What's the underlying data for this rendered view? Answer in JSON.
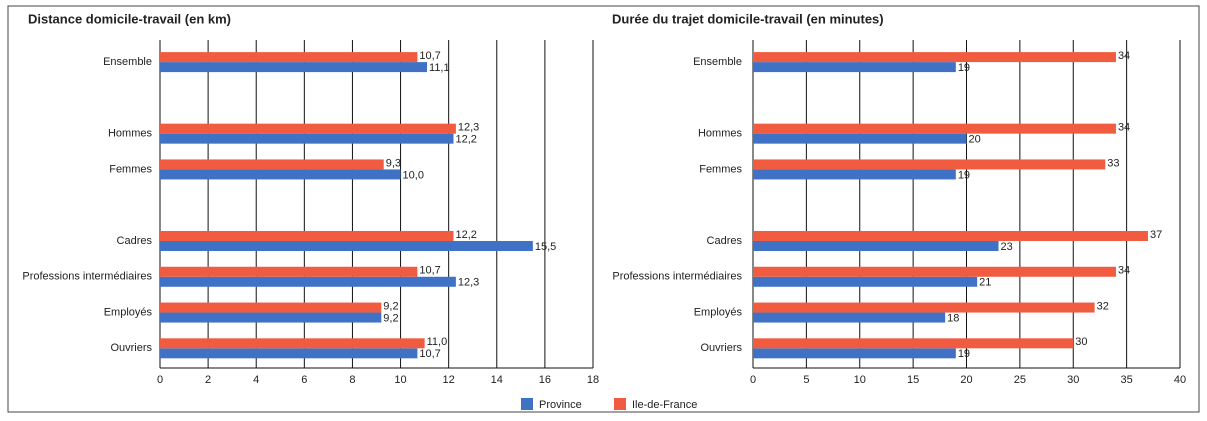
{
  "chart_data": [
    {
      "type": "barh",
      "title": "Distance domicile-travail (en km)",
      "categories": [
        "Ensemble",
        null,
        "Hommes",
        "Femmes",
        null,
        "Cadres",
        "Professions intermédiaires",
        "Employés",
        "Ouvriers"
      ],
      "series": [
        {
          "name": "Province",
          "color": "#3f72c4",
          "values": [
            11.1,
            null,
            12.2,
            10.0,
            null,
            15.5,
            12.3,
            9.2,
            10.7
          ],
          "value_labels": [
            "11,1",
            null,
            "12,2",
            "10,0",
            null,
            "15,5",
            "12,3",
            "9,2",
            "10,7"
          ]
        },
        {
          "name": "Ile-de-France",
          "color": "#f15b40",
          "values": [
            10.7,
            null,
            12.3,
            9.3,
            null,
            12.2,
            10.7,
            9.2,
            11.0
          ],
          "value_labels": [
            "10,7",
            null,
            "12,3",
            "9,3",
            null,
            "12,2",
            "10,7",
            "9,2",
            "11,0"
          ]
        }
      ],
      "xlim": [
        0,
        18
      ],
      "xticks": [
        0,
        2,
        4,
        6,
        8,
        10,
        12,
        14,
        16,
        18
      ],
      "grid": true
    },
    {
      "type": "barh",
      "title": "Durée du trajet domicile-travail (en minutes)",
      "categories": [
        "Ensemble",
        null,
        "Hommes",
        "Femmes",
        null,
        "Cadres",
        "Professions intermédiaires",
        "Employés",
        "Ouvriers"
      ],
      "series": [
        {
          "color": "#3f72c4",
          "values": [
            19,
            null,
            20,
            19,
            null,
            23,
            21,
            18,
            19
          ]
        },
        {
          "color": "#f15b40",
          "values": [
            34,
            null,
            34,
            33,
            null,
            37,
            34,
            32,
            30
          ]
        }
      ],
      "xlim": [
        0,
        40
      ],
      "xticks": [
        0,
        5,
        10,
        15,
        20,
        25,
        30,
        35,
        40
      ],
      "grid": true
    }
  ]
}
